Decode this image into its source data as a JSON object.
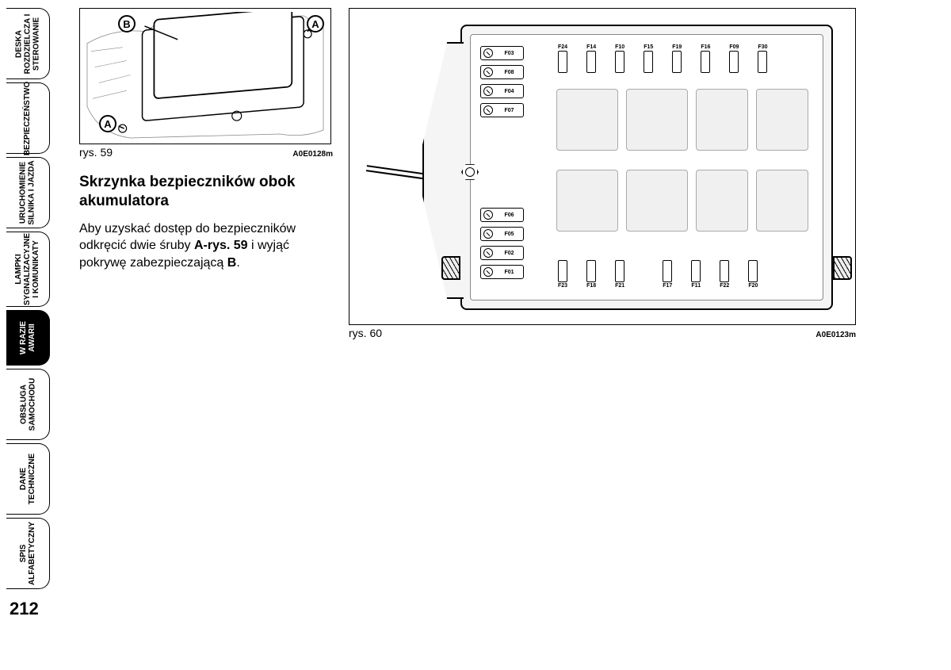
{
  "page_number": "212",
  "tabs": [
    {
      "label": "DESKA\nROZDZIELCZA I\nSTEROWANIE",
      "active": false
    },
    {
      "label": "BEZPIECZEŃSTWO",
      "active": false
    },
    {
      "label": "URUCHOMIENIE\nSILNIKA I JAZDA",
      "active": false
    },
    {
      "label": "LAMPKI\nSYGNALIZACYJNE\nI KOMUNIKATY",
      "active": false
    },
    {
      "label": "W RAZIE\nAWARII",
      "active": true
    },
    {
      "label": "OBSŁUGA\nSAMOCHODU",
      "active": false
    },
    {
      "label": "DANE\nTECHNICZNE",
      "active": false
    },
    {
      "label": "SPIS\nALFABETYCZNY",
      "active": false
    }
  ],
  "fig1": {
    "caption": "rys. 59",
    "code": "A0E0128m",
    "badges": {
      "A": "A",
      "B": "B"
    }
  },
  "fig2": {
    "caption": "rys. 60",
    "code": "A0E0123m",
    "maxi_top": [
      "F03",
      "F08",
      "F04",
      "F07"
    ],
    "mini_top": [
      "F24",
      "F14",
      "F10",
      "F15",
      "F19",
      "F16",
      "F09",
      "F30"
    ],
    "maxi_bottom": [
      "F06",
      "F05",
      "F02",
      "F01"
    ],
    "mini_bottom": [
      "F23",
      "F18",
      "F21",
      "F17",
      "F11",
      "F22",
      "F20"
    ]
  },
  "heading": "Skrzynka bezpieczników obok akumulatora",
  "body_parts": {
    "p1": "Aby uzyskać dostęp do bezpieczników odkręcić dwie śruby ",
    "b1": "A-rys. 59",
    "p2": " i wyjąć pokrywę zabezpieczającą ",
    "b2": "B",
    "p3": "."
  }
}
